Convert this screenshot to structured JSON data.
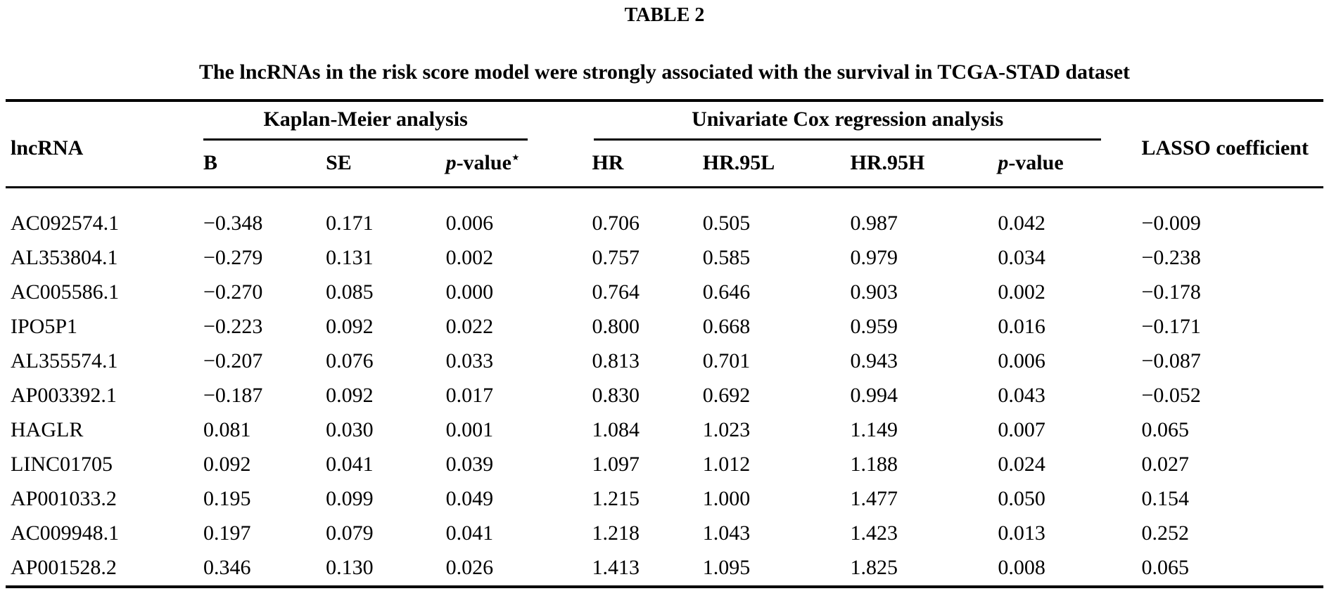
{
  "page": {
    "label": "TABLE 2",
    "caption": "The lncRNAs in the risk score model were strongly associated with the survival in TCGA-STAD dataset"
  },
  "table": {
    "headers": {
      "lncrna": "lncRNA",
      "km_group": "Kaplan-Meier analysis",
      "cox_group": "Univariate Cox regression analysis",
      "lasso": "LASSO coefficient",
      "b": "B",
      "se": "SE",
      "p_km_italic": "p",
      "p_km_rest": "-value",
      "p_km_star": "⋆",
      "hr": "HR",
      "hr_95l": "HR.95L",
      "hr_95h": "HR.95H",
      "p_cox_italic": "p",
      "p_cox_rest": "-value"
    },
    "rows": [
      {
        "lncrna": "AC092574.1",
        "b": "−0.348",
        "se": "0.171",
        "p_km": "0.006",
        "hr": "0.706",
        "hr_95l": "0.505",
        "hr_95h": "0.987",
        "p_cox": "0.042",
        "lasso": "−0.009"
      },
      {
        "lncrna": "AL353804.1",
        "b": "−0.279",
        "se": "0.131",
        "p_km": "0.002",
        "hr": "0.757",
        "hr_95l": "0.585",
        "hr_95h": "0.979",
        "p_cox": "0.034",
        "lasso": "−0.238"
      },
      {
        "lncrna": "AC005586.1",
        "b": "−0.270",
        "se": "0.085",
        "p_km": "0.000",
        "hr": "0.764",
        "hr_95l": "0.646",
        "hr_95h": "0.903",
        "p_cox": "0.002",
        "lasso": "−0.178"
      },
      {
        "lncrna": "IPO5P1",
        "b": "−0.223",
        "se": "0.092",
        "p_km": "0.022",
        "hr": "0.800",
        "hr_95l": "0.668",
        "hr_95h": "0.959",
        "p_cox": "0.016",
        "lasso": "−0.171"
      },
      {
        "lncrna": "AL355574.1",
        "b": "−0.207",
        "se": "0.076",
        "p_km": "0.033",
        "hr": "0.813",
        "hr_95l": "0.701",
        "hr_95h": "0.943",
        "p_cox": "0.006",
        "lasso": "−0.087"
      },
      {
        "lncrna": "AP003392.1",
        "b": "−0.187",
        "se": "0.092",
        "p_km": "0.017",
        "hr": "0.830",
        "hr_95l": "0.692",
        "hr_95h": "0.994",
        "p_cox": "0.043",
        "lasso": "−0.052"
      },
      {
        "lncrna": "HAGLR",
        "b": "0.081",
        "se": "0.030",
        "p_km": "0.001",
        "hr": "1.084",
        "hr_95l": "1.023",
        "hr_95h": "1.149",
        "p_cox": "0.007",
        "lasso": "0.065"
      },
      {
        "lncrna": "LINC01705",
        "b": "0.092",
        "se": "0.041",
        "p_km": "0.039",
        "hr": "1.097",
        "hr_95l": "1.012",
        "hr_95h": "1.188",
        "p_cox": "0.024",
        "lasso": "0.027"
      },
      {
        "lncrna": "AP001033.2",
        "b": "0.195",
        "se": "0.099",
        "p_km": "0.049",
        "hr": "1.215",
        "hr_95l": "1.000",
        "hr_95h": "1.477",
        "p_cox": "0.050",
        "lasso": "0.154"
      },
      {
        "lncrna": "AC009948.1",
        "b": "0.197",
        "se": "0.079",
        "p_km": "0.041",
        "hr": "1.218",
        "hr_95l": "1.043",
        "hr_95h": "1.423",
        "p_cox": "0.013",
        "lasso": "0.252"
      },
      {
        "lncrna": "AP001528.2",
        "b": "0.346",
        "se": "0.130",
        "p_km": "0.026",
        "hr": "1.413",
        "hr_95l": "1.095",
        "hr_95h": "1.825",
        "p_cox": "0.008",
        "lasso": "0.065"
      }
    ]
  }
}
